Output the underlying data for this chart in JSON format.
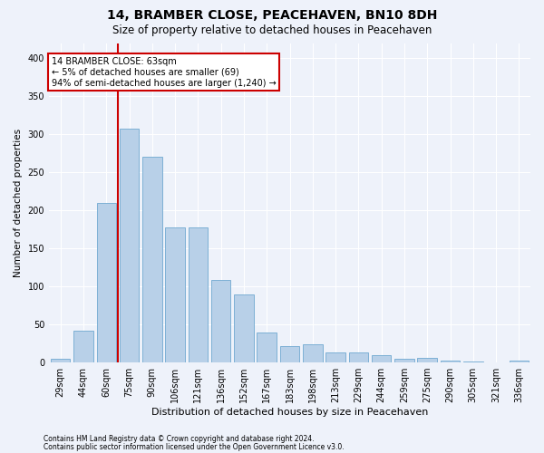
{
  "title": "14, BRAMBER CLOSE, PEACEHAVEN, BN10 8DH",
  "subtitle": "Size of property relative to detached houses in Peacehaven",
  "xlabel": "Distribution of detached houses by size in Peacehaven",
  "ylabel": "Number of detached properties",
  "categories": [
    "29sqm",
    "44sqm",
    "60sqm",
    "75sqm",
    "90sqm",
    "106sqm",
    "121sqm",
    "136sqm",
    "152sqm",
    "167sqm",
    "183sqm",
    "198sqm",
    "213sqm",
    "229sqm",
    "244sqm",
    "259sqm",
    "275sqm",
    "290sqm",
    "305sqm",
    "321sqm",
    "336sqm"
  ],
  "values": [
    5,
    42,
    210,
    308,
    270,
    177,
    177,
    108,
    90,
    39,
    21,
    24,
    13,
    13,
    10,
    5,
    6,
    3,
    1,
    0,
    3
  ],
  "bar_color": "#b8d0e8",
  "bar_edge_color": "#6fa8d0",
  "annotation_text": "14 BRAMBER CLOSE: 63sqm\n← 5% of detached houses are smaller (69)\n94% of semi-detached houses are larger (1,240) →",
  "annotation_box_color": "#ffffff",
  "annotation_box_edge": "#cc0000",
  "vline_color": "#cc0000",
  "vline_x": 2.5,
  "footer1": "Contains HM Land Registry data © Crown copyright and database right 2024.",
  "footer2": "Contains public sector information licensed under the Open Government Licence v3.0.",
  "ylim": [
    0,
    420
  ],
  "background_color": "#eef2fa",
  "grid_color": "#ffffff",
  "title_fontsize": 10,
  "subtitle_fontsize": 8.5,
  "ylabel_fontsize": 7.5,
  "xlabel_fontsize": 8,
  "tick_fontsize": 7,
  "ann_fontsize": 7,
  "footer_fontsize": 5.5
}
